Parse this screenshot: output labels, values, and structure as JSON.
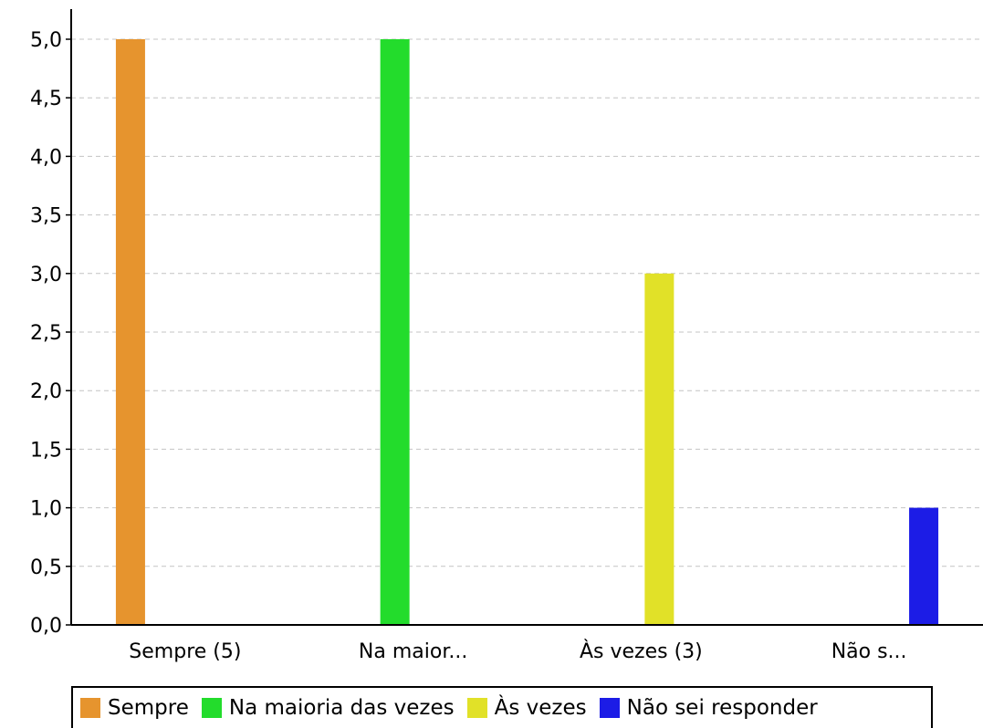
{
  "chart_data": {
    "type": "bar",
    "categories": [
      "Sempre (5)",
      "Na maior...",
      "Às vezes (3)",
      "Não s..."
    ],
    "series": [
      {
        "name": "Sempre",
        "color": "#e6942e",
        "values": [
          5,
          0,
          0,
          0
        ]
      },
      {
        "name": "Na maioria das vezes",
        "color": "#23dc2c",
        "values": [
          0,
          5,
          0,
          0
        ]
      },
      {
        "name": "Às vezes",
        "color": "#e1e128",
        "values": [
          0,
          0,
          3,
          0
        ]
      },
      {
        "name": "Não sei responder",
        "color": "#1c1ce6",
        "values": [
          0,
          0,
          0,
          1
        ]
      }
    ],
    "ylim": [
      0,
      5
    ],
    "y_ticks": [
      "0,0",
      "0,5",
      "1,0",
      "1,5",
      "2,0",
      "2,5",
      "3,0",
      "3,5",
      "4,0",
      "4,5",
      "5,0"
    ],
    "grid": true,
    "legend_position": "bottom"
  }
}
